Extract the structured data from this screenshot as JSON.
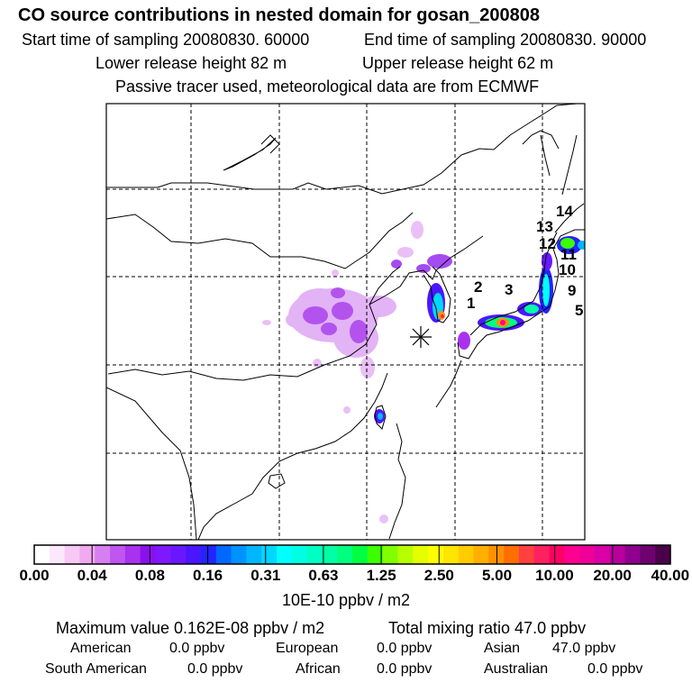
{
  "header": {
    "title": "CO  source contributions in nested domain for gosan_200808",
    "start_time": "Start time of sampling 20080830. 60000",
    "end_time": "End time of sampling 20080830. 90000",
    "lower_height": "Lower release height   82 m",
    "upper_height": "Upper release height   62 m",
    "tracer_note": "Passive tracer used, meteorological data are from ECMWF"
  },
  "chart_data": {
    "type": "heatmap",
    "title": "CO  source contributions in nested domain for gosan_200808",
    "colorbar": {
      "tick_labels": [
        "0.00",
        "0.04",
        "0.08",
        "0.16",
        "0.31",
        "0.63",
        "1.25",
        "2.50",
        "5.00",
        "10.00",
        "20.00",
        "40.00"
      ],
      "unit": "10E-10 ppbv / m2",
      "colors": [
        "#ffffff",
        "#fde8fb",
        "#f7c9f5",
        "#f1a9ef",
        "#d77ff0",
        "#c055ef",
        "#a832ee",
        "#8a10ee",
        "#7e19ff",
        "#6a17ff",
        "#4b16ff",
        "#2323ff",
        "#0068ff",
        "#0092ff",
        "#00b7ff",
        "#00d7ff",
        "#00ffff",
        "#00ffe2",
        "#00ffc3",
        "#00ffa4",
        "#00ff7e",
        "#00ff42",
        "#3cff00",
        "#80ff00",
        "#b7ff00",
        "#e3ff00",
        "#ffff00",
        "#ffe600",
        "#ffcc00",
        "#ffb000",
        "#ff9000",
        "#ff6e00",
        "#ff4040",
        "#ff2060",
        "#ff0066",
        "#ff0090",
        "#ee0099",
        "#d800a6",
        "#b8009c",
        "#900090",
        "#700070",
        "#4a004a"
      ]
    },
    "region_labels": [
      "1",
      "2",
      "3",
      "5",
      "9",
      "10",
      "11",
      "12",
      "13",
      "14"
    ],
    "receptor": "gosan"
  },
  "stats": {
    "max_value": "Maximum value  0.162E-08 ppbv / m2",
    "total_mixing": "Total mixing ratio       47.0 ppbv",
    "american_label": "American",
    "american_value": "0.0 ppbv",
    "european_label": "European",
    "european_value": "0.0 ppbv",
    "asian_label": "Asian",
    "asian_value": "47.0 ppbv",
    "south_american_label": "South American",
    "south_american_value": "0.0 ppbv",
    "african_label": "African",
    "african_value": "0.0 ppbv",
    "australian_label": "Australian",
    "australian_value": "0.0 ppbv"
  }
}
